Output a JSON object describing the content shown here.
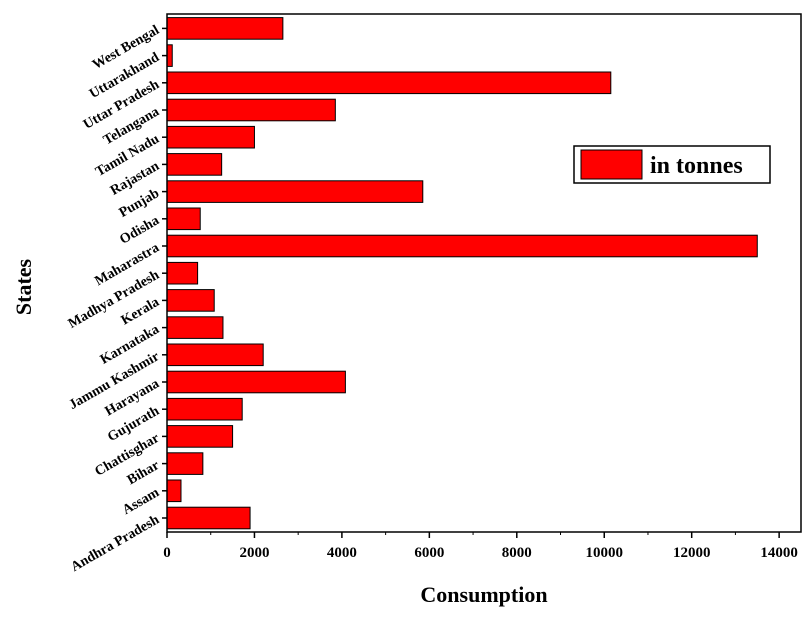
{
  "chart_data": {
    "type": "bar",
    "orientation": "horizontal",
    "categories": [
      "Andhra Pradesh",
      "Assam",
      "Bihar",
      "Chattisghar",
      "Gujurath",
      "Harayana",
      "Jammu Kashmir",
      "Karnataka",
      "Kerala",
      "Madhya Pradesh",
      "Maharastra",
      "Odisha",
      "Punjab",
      "Rajastan",
      "Tamil Nadu",
      "Telangana",
      "Uttar Pradesh",
      "Uttarakhand",
      "West Bengal"
    ],
    "series": [
      {
        "name": "in tonnes",
        "color": "#ff0000",
        "values": [
          1900,
          320,
          820,
          1500,
          1720,
          4080,
          2200,
          1280,
          1080,
          700,
          13500,
          760,
          5850,
          1250,
          2000,
          3850,
          10150,
          120,
          2650
        ]
      }
    ],
    "xlabel": "Consumption",
    "ylabel": "States",
    "xlim": [
      0,
      14500
    ],
    "xticks": [
      "0",
      "2000",
      "4000",
      "6000",
      "8000",
      "10000",
      "12000",
      "14000"
    ],
    "grid": false,
    "legend_position": "right"
  }
}
